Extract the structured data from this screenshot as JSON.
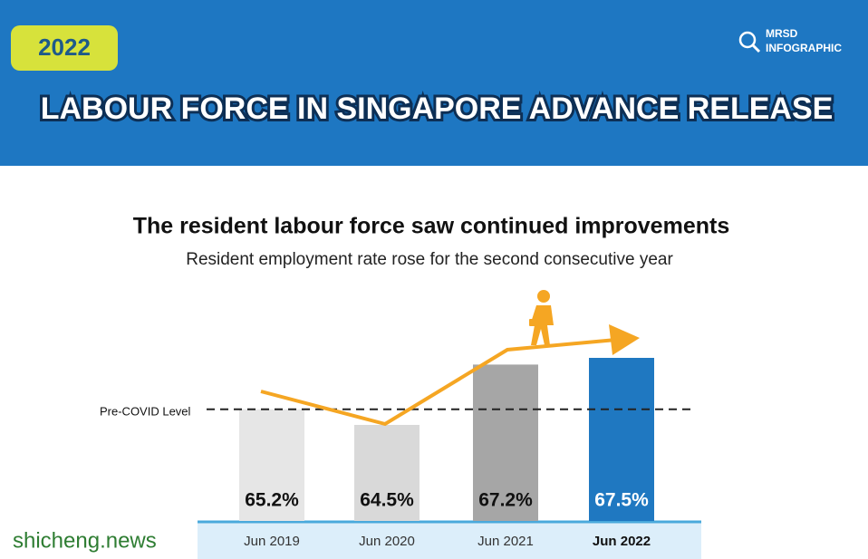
{
  "header": {
    "year": "2022",
    "brand": [
      "MRSD",
      "INFOGRAPHIC"
    ],
    "title": "LABOUR FORCE IN SINGAPORE ADVANCE RELEASE"
  },
  "chart_data": {
    "type": "bar",
    "title": "The resident labour force saw continued improvements",
    "subtitle": "Resident employment rate rose for the second consecutive year",
    "categories": [
      "Jun 2019",
      "Jun 2020",
      "Jun 2021",
      "Jun 2022"
    ],
    "values": [
      65.2,
      64.5,
      67.2,
      67.5
    ],
    "value_labels": [
      "65.2%",
      "64.5%",
      "67.2%",
      "67.5%"
    ],
    "colors": [
      "#e6e6e6",
      "#d9d9d9",
      "#a6a6a6",
      "#1f78c1"
    ],
    "label_colors": [
      "#111111",
      "#111111",
      "#111111",
      "#ffffff"
    ],
    "annotation": "Pre-COVID Level"
  },
  "watermark": "shicheng.news"
}
